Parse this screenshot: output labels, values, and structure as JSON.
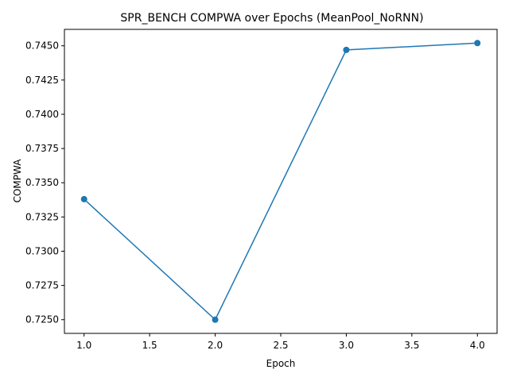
{
  "chart_data": {
    "type": "line",
    "title": "SPR_BENCH COMPWA over Epochs (MeanPool_NoRNN)",
    "xlabel": "Epoch",
    "ylabel": "COMPWA",
    "x": [
      1,
      2,
      3,
      4
    ],
    "series": [
      {
        "values": [
          0.7338,
          0.725,
          0.7447,
          0.7452
        ]
      }
    ],
    "xlim": [
      0.85,
      4.15
    ],
    "ylim": [
      0.724,
      0.7462
    ],
    "xticks": [
      "1.0",
      "1.5",
      "2.0",
      "2.5",
      "3.0",
      "3.5",
      "4.0"
    ],
    "yticks": [
      "0.7250",
      "0.7275",
      "0.7300",
      "0.7325",
      "0.7350",
      "0.7375",
      "0.7400",
      "0.7425",
      "0.7450"
    ],
    "grid": false,
    "line_color": "#1f77b4",
    "marker": "circle"
  }
}
